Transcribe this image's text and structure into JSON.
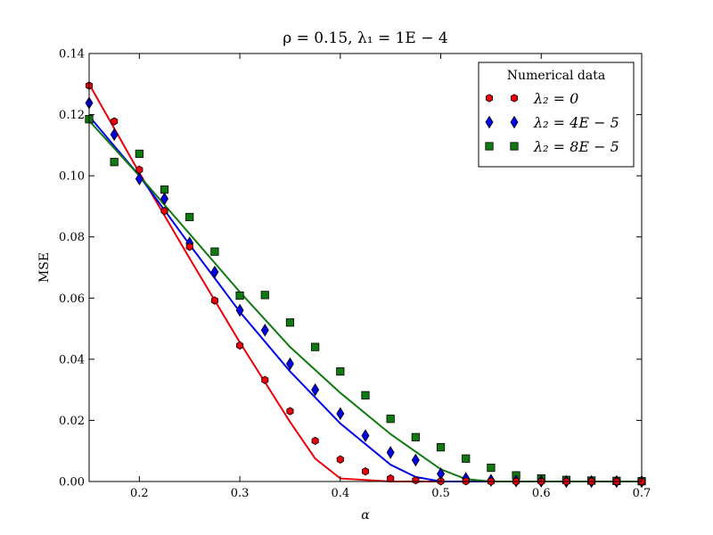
{
  "chart_data": {
    "type": "scatter",
    "title": "ρ = 0.15,  λ₁ = 1E − 4",
    "xlabel": "α",
    "ylabel": "MSE",
    "xlim": [
      0.15,
      0.7
    ],
    "ylim": [
      0,
      0.14
    ],
    "x_ticks": [
      "0.2",
      "0.3",
      "0.4",
      "0.5",
      "0.6",
      "0.7"
    ],
    "y_ticks": [
      "0.00",
      "0.02",
      "0.04",
      "0.06",
      "0.08",
      "0.10",
      "0.12",
      "0.14"
    ],
    "x_tick_values": [
      0.2,
      0.3,
      0.4,
      0.5,
      0.6,
      0.7
    ],
    "y_tick_values": [
      0,
      0.02,
      0.04,
      0.06,
      0.08,
      0.1,
      0.12,
      0.14
    ],
    "grid": false,
    "legend": {
      "title": "Numerical data",
      "position": "top-right"
    },
    "series": [
      {
        "name": "λ₂ = 0",
        "color": "#e8000b",
        "marker": "hexagon",
        "points": {
          "x": [
            0.15,
            0.175,
            0.2,
            0.225,
            0.25,
            0.275,
            0.3,
            0.325,
            0.35,
            0.375,
            0.4,
            0.425,
            0.45,
            0.475,
            0.5,
            0.525,
            0.55,
            0.575,
            0.6,
            0.625,
            0.65,
            0.675,
            0.7
          ],
          "y": [
            0.1295,
            0.1178,
            0.102,
            0.0885,
            0.0768,
            0.0592,
            0.0445,
            0.0332,
            0.023,
            0.0133,
            0.0072,
            0.0033,
            0.001,
            0.0004,
            0.0001,
            0.0001,
            0,
            0,
            0,
            0,
            0,
            0,
            0
          ]
        },
        "curve": {
          "x": [
            0.15,
            0.2,
            0.25,
            0.3,
            0.35,
            0.375,
            0.4,
            0.45,
            0.5,
            0.55,
            0.6,
            0.65,
            0.7
          ],
          "y": [
            0.13,
            0.101,
            0.073,
            0.0455,
            0.0195,
            0.0075,
            0.001,
            0,
            0,
            0,
            0,
            0,
            0
          ]
        }
      },
      {
        "name": "λ₂ = 4E − 5",
        "color": "#0000e8",
        "marker": "diamond",
        "points": {
          "x": [
            0.15,
            0.175,
            0.2,
            0.225,
            0.25,
            0.275,
            0.3,
            0.325,
            0.35,
            0.375,
            0.4,
            0.425,
            0.45,
            0.475,
            0.5,
            0.525,
            0.55,
            0.575,
            0.6,
            0.625,
            0.65,
            0.675,
            0.7
          ],
          "y": [
            0.1238,
            0.1135,
            0.099,
            0.0925,
            0.078,
            0.0685,
            0.056,
            0.0495,
            0.0385,
            0.03,
            0.0222,
            0.015,
            0.0095,
            0.007,
            0.0025,
            0.001,
            0.0004,
            0.0002,
            0.0001,
            0,
            0,
            0,
            0
          ]
        },
        "curve": {
          "x": [
            0.15,
            0.2,
            0.25,
            0.3,
            0.35,
            0.4,
            0.45,
            0.475,
            0.5,
            0.55,
            0.6,
            0.65,
            0.7
          ],
          "y": [
            0.1195,
            0.1,
            0.0775,
            0.0555,
            0.036,
            0.019,
            0.0055,
            0.0015,
            0,
            0,
            0,
            0,
            0
          ]
        }
      },
      {
        "name": "λ₂ = 8E − 5",
        "color": "#107a10",
        "marker": "square",
        "points": {
          "x": [
            0.15,
            0.175,
            0.2,
            0.225,
            0.25,
            0.275,
            0.3,
            0.325,
            0.35,
            0.375,
            0.4,
            0.425,
            0.45,
            0.475,
            0.5,
            0.525,
            0.55,
            0.575,
            0.6,
            0.625,
            0.65,
            0.675,
            0.7
          ],
          "y": [
            0.1185,
            0.1045,
            0.1072,
            0.0955,
            0.0865,
            0.0752,
            0.0608,
            0.061,
            0.052,
            0.044,
            0.036,
            0.0282,
            0.0205,
            0.0145,
            0.0112,
            0.0075,
            0.0045,
            0.002,
            0.001,
            0.0005,
            0.0003,
            0.0002,
            0.0001
          ]
        },
        "curve": {
          "x": [
            0.15,
            0.2,
            0.25,
            0.3,
            0.35,
            0.4,
            0.45,
            0.5,
            0.525,
            0.55,
            0.6,
            0.65,
            0.7
          ],
          "y": [
            0.118,
            0.1,
            0.081,
            0.062,
            0.044,
            0.029,
            0.0155,
            0.004,
            0.0008,
            0,
            0,
            0,
            0
          ]
        }
      }
    ]
  }
}
